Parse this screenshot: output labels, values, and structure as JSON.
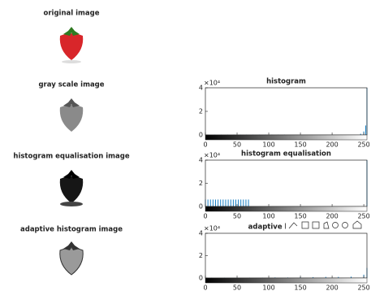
{
  "images": [
    {
      "title": "original image"
    },
    {
      "title": "gray scale image"
    },
    {
      "title": "histogram equalisation image"
    },
    {
      "title": "adaptive histogram image"
    }
  ],
  "chart_data": [
    {
      "type": "bar",
      "title": "histogram",
      "y_multiplier": "×10⁴",
      "color": "#0072bd",
      "x": [
        5,
        15,
        25,
        35,
        45,
        55,
        65,
        75,
        85,
        95,
        105,
        115,
        125,
        245,
        250,
        253,
        255
      ],
      "values": [
        0.03,
        0.03,
        0.03,
        0.03,
        0.03,
        0.03,
        0.03,
        0.03,
        0.03,
        0.03,
        0.03,
        0.03,
        0.03,
        0.1,
        0.3,
        0.8,
        4
      ],
      "xlim": [
        0,
        255
      ],
      "xticks": [
        0,
        50,
        100,
        150,
        200,
        250
      ],
      "ylim": [
        0,
        4
      ],
      "yticks": [
        0,
        2,
        4
      ]
    },
    {
      "type": "bar",
      "title": "histogram equalisation",
      "y_multiplier": "×10⁴",
      "color": "#0072bd",
      "x": [
        0,
        4,
        8,
        12,
        16,
        20,
        24,
        28,
        32,
        36,
        40,
        44,
        48,
        52,
        56,
        60,
        64,
        68,
        255
      ],
      "values": [
        0.6,
        0.6,
        0.6,
        0.6,
        0.6,
        0.6,
        0.6,
        0.6,
        0.6,
        0.6,
        0.6,
        0.6,
        0.6,
        0.6,
        0.6,
        0.6,
        0.6,
        0.6,
        4
      ],
      "xlim": [
        0,
        255
      ],
      "xticks": [
        0,
        50,
        100,
        150,
        200,
        250
      ],
      "ylim": [
        0,
        4
      ],
      "yticks": [
        0,
        2,
        4
      ]
    },
    {
      "type": "bar",
      "title": "adaptive histogram",
      "y_multiplier": "×10⁴",
      "color": "#0072bd",
      "x": [
        10,
        30,
        50,
        70,
        90,
        110,
        130,
        150,
        170,
        190,
        210,
        230,
        250,
        255
      ],
      "values": [
        0.03,
        0.03,
        0.03,
        0.03,
        0.03,
        0.05,
        0.05,
        0.08,
        0.08,
        0.1,
        0.1,
        0.12,
        0.3,
        0.9
      ],
      "xlim": [
        0,
        255
      ],
      "xticks": [
        0,
        50,
        100,
        150,
        200,
        250
      ],
      "ylim": [
        0,
        4
      ],
      "yticks": [
        0,
        2,
        4
      ]
    }
  ]
}
